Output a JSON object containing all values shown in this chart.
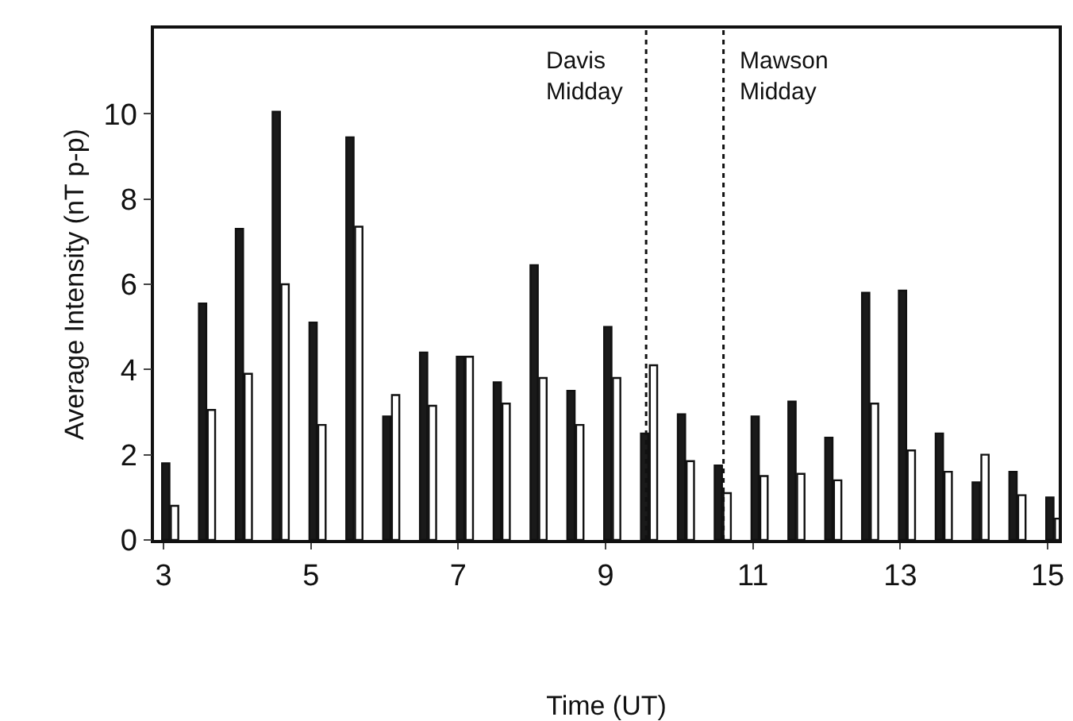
{
  "chart_data": {
    "type": "bar",
    "xlabel": "Time (UT)",
    "ylabel": "Average Intensity (nT p-p)",
    "x": [
      3,
      3.5,
      4,
      4.5,
      5,
      5.5,
      6,
      6.5,
      7,
      7.5,
      8,
      8.5,
      9,
      9.5,
      10,
      10.5,
      11,
      11.5,
      12,
      12.5,
      13,
      13.5,
      14,
      14.5,
      15
    ],
    "series": [
      {
        "color": "#1a1a1a",
        "values": [
          1.8,
          5.55,
          7.3,
          10.05,
          5.1,
          9.45,
          2.9,
          4.4,
          4.3,
          3.7,
          6.45,
          3.5,
          5.0,
          2.5,
          2.95,
          1.75,
          2.9,
          3.25,
          2.4,
          5.8,
          5.85,
          2.5,
          1.35,
          1.6,
          1.0
        ]
      },
      {
        "color": "#ffffff",
        "values": [
          0.8,
          3.05,
          3.9,
          6.0,
          2.7,
          7.35,
          3.4,
          3.15,
          4.3,
          3.2,
          3.8,
          2.7,
          3.8,
          4.1,
          1.85,
          1.1,
          1.5,
          1.55,
          1.4,
          3.2,
          2.1,
          1.6,
          2.0,
          1.05,
          0.5
        ]
      }
    ],
    "xlim": [
      2.87,
      15.15
    ],
    "xticks": [
      3,
      5,
      7,
      9,
      11,
      13,
      15
    ],
    "ylim": [
      0,
      12
    ],
    "yticks": [
      0,
      2,
      4,
      6,
      8,
      10
    ],
    "ref_lines": [
      {
        "axis": "x",
        "value": 9.55,
        "label": "Davis Midday",
        "line_style": "dotted"
      },
      {
        "axis": "x",
        "value": 10.6,
        "label": "Mawson Midday",
        "line_style": "dotted"
      }
    ],
    "grid": false
  }
}
